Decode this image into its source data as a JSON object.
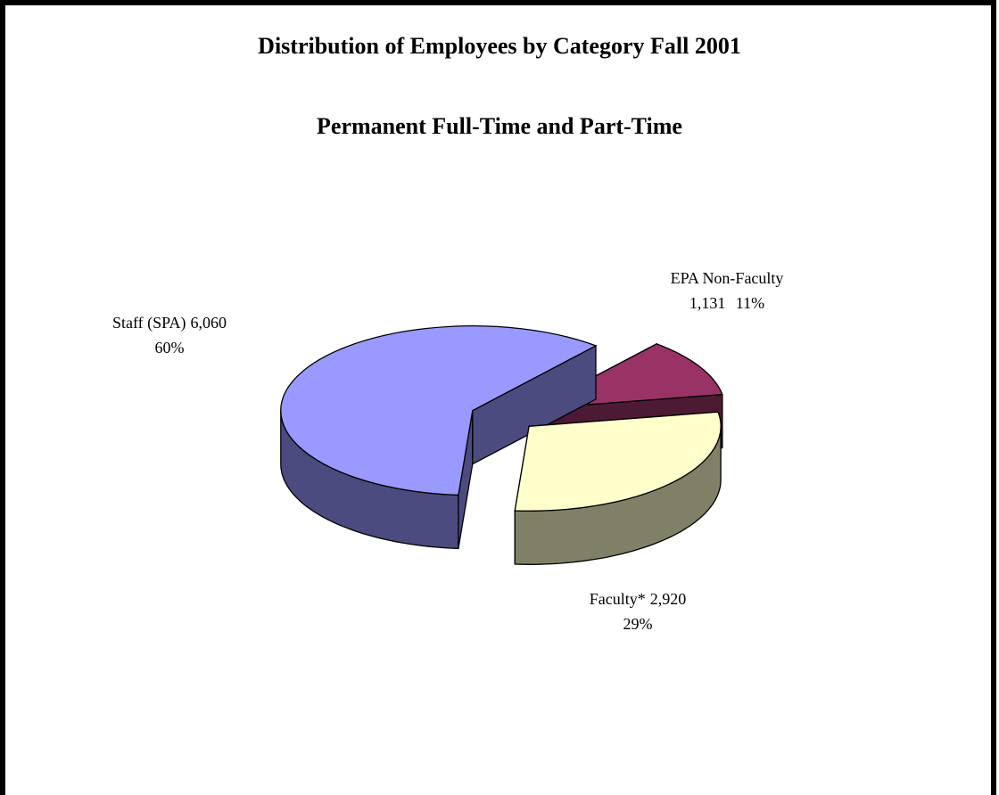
{
  "chart_data": {
    "type": "pie3d",
    "title": "Distribution of Employees by Category Fall 2001",
    "subtitle": "Permanent Full-Time and Part-Time",
    "categories": [
      "EPA Non-Faculty",
      "Faculty*",
      "Staff (SPA)"
    ],
    "values": [
      1131,
      2920,
      6060
    ],
    "value_labels": [
      "1,131",
      "2,920",
      "6,060"
    ],
    "percents": [
      11,
      29,
      60
    ],
    "percent_labels": [
      "11%",
      "29%",
      "60%"
    ],
    "colors": [
      "#993366",
      "#ffffcc",
      "#9999ff"
    ],
    "side_colors": [
      "#4d1a33",
      "#808066",
      "#4b4b80"
    ]
  }
}
